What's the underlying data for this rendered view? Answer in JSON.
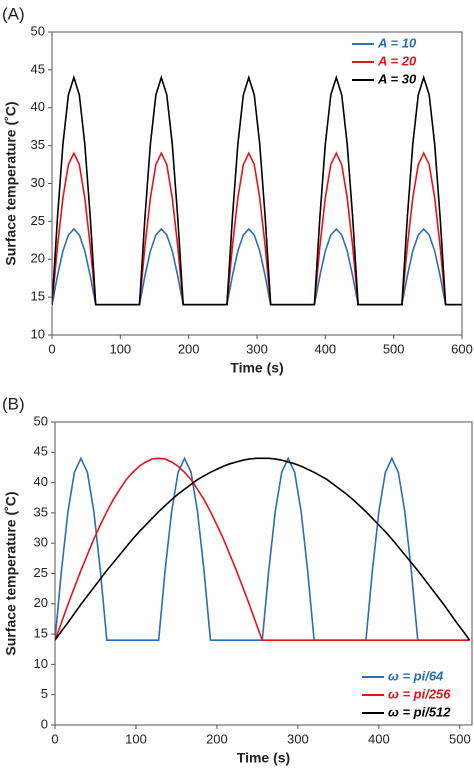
{
  "chart_data": [
    {
      "type": "line",
      "label": "(A)",
      "xlabel": "Time (s)",
      "ylabel": "Surface temperature (˚C)",
      "xlim": [
        0,
        600
      ],
      "xticks": [
        0,
        100,
        200,
        300,
        400,
        500,
        600
      ],
      "ylim": [
        10,
        50
      ],
      "yticks": [
        10,
        15,
        20,
        25,
        30,
        35,
        40,
        45,
        50
      ],
      "legend": "upper right",
      "x": [
        0,
        8,
        16,
        24,
        32,
        40,
        48,
        56,
        64,
        72,
        80,
        88,
        96,
        104,
        112,
        120,
        128,
        136,
        144,
        152,
        160,
        168,
        176,
        184,
        192,
        200,
        208,
        216,
        224,
        232,
        240,
        248,
        256,
        264,
        272,
        280,
        288,
        296,
        304,
        312,
        320,
        328,
        336,
        344,
        352,
        360,
        368,
        376,
        384,
        392,
        400,
        408,
        416,
        424,
        432,
        440,
        448,
        456,
        464,
        472,
        480,
        488,
        496,
        504,
        512,
        520,
        528,
        536,
        544,
        552,
        560,
        568,
        576,
        584,
        592,
        600
      ],
      "series": [
        {
          "name": "A = 10",
          "color": "#2a6eb5",
          "values": [
            14,
            17.8,
            21.1,
            23.2,
            24,
            23.2,
            21.1,
            17.8,
            14,
            14,
            14,
            14,
            14,
            14,
            14,
            14,
            14,
            17.8,
            21.1,
            23.2,
            24,
            23.2,
            21.1,
            17.8,
            14,
            14,
            14,
            14,
            14,
            14,
            14,
            14,
            14,
            17.8,
            21.1,
            23.2,
            24,
            23.2,
            21.1,
            17.8,
            14,
            14,
            14,
            14,
            14,
            14,
            14,
            14,
            14,
            17.8,
            21.1,
            23.2,
            24,
            23.2,
            21.1,
            17.8,
            14,
            14,
            14,
            14,
            14,
            14,
            14,
            14,
            14,
            17.8,
            21.1,
            23.2,
            24,
            23.2,
            21.1,
            17.8,
            14,
            14,
            14,
            14
          ]
        },
        {
          "name": "A = 20",
          "color": "#e8121a",
          "values": [
            14,
            21.7,
            28.1,
            32.5,
            34,
            32.5,
            28.1,
            21.7,
            14,
            14,
            14,
            14,
            14,
            14,
            14,
            14,
            14,
            21.7,
            28.1,
            32.5,
            34,
            32.5,
            28.1,
            21.7,
            14,
            14,
            14,
            14,
            14,
            14,
            14,
            14,
            14,
            21.7,
            28.1,
            32.5,
            34,
            32.5,
            28.1,
            21.7,
            14,
            14,
            14,
            14,
            14,
            14,
            14,
            14,
            14,
            21.7,
            28.1,
            32.5,
            34,
            32.5,
            28.1,
            21.7,
            14,
            14,
            14,
            14,
            14,
            14,
            14,
            14,
            14,
            21.7,
            28.1,
            32.5,
            34,
            32.5,
            28.1,
            21.7,
            14,
            14,
            14,
            14
          ]
        },
        {
          "name": "A = 30",
          "color": "#000000",
          "values": [
            14,
            25.5,
            35.2,
            41.7,
            44,
            41.7,
            35.2,
            25.5,
            14,
            14,
            14,
            14,
            14,
            14,
            14,
            14,
            14,
            25.5,
            35.2,
            41.7,
            44,
            41.7,
            35.2,
            25.5,
            14,
            14,
            14,
            14,
            14,
            14,
            14,
            14,
            14,
            25.5,
            35.2,
            41.7,
            44,
            41.7,
            35.2,
            25.5,
            14,
            14,
            14,
            14,
            14,
            14,
            14,
            14,
            14,
            25.5,
            35.2,
            41.7,
            44,
            41.7,
            35.2,
            25.5,
            14,
            14,
            14,
            14,
            14,
            14,
            14,
            14,
            14,
            25.5,
            35.2,
            41.7,
            44,
            41.7,
            35.2,
            25.5,
            14,
            14,
            14,
            14
          ]
        }
      ]
    },
    {
      "type": "line",
      "label": "(B)",
      "xlabel": "Time (s)",
      "ylabel": "Surface temperature (˚C)",
      "xlim": [
        0,
        515
      ],
      "xticks": [
        0,
        100,
        200,
        300,
        400,
        500
      ],
      "ylim": [
        0,
        50
      ],
      "yticks": [
        0,
        5,
        10,
        15,
        20,
        25,
        30,
        35,
        40,
        45,
        50
      ],
      "legend": "lower right",
      "x": [
        0,
        8,
        16,
        24,
        32,
        40,
        48,
        56,
        64,
        72,
        80,
        88,
        96,
        104,
        112,
        120,
        128,
        136,
        144,
        152,
        160,
        168,
        176,
        184,
        192,
        200,
        208,
        216,
        224,
        232,
        240,
        248,
        256,
        264,
        272,
        280,
        288,
        296,
        304,
        312,
        320,
        328,
        336,
        344,
        352,
        360,
        368,
        376,
        384,
        392,
        400,
        408,
        416,
        424,
        432,
        440,
        448,
        456,
        464,
        472,
        480,
        488,
        496,
        504,
        512
      ],
      "series": [
        {
          "name": "ω = pi/64",
          "color": "#2a6eb5",
          "values": [
            14,
            25.5,
            35.2,
            41.7,
            44,
            41.7,
            35.2,
            25.5,
            14,
            14,
            14,
            14,
            14,
            14,
            14,
            14,
            14,
            25.5,
            35.2,
            41.7,
            44,
            41.7,
            35.2,
            25.5,
            14,
            14,
            14,
            14,
            14,
            14,
            14,
            14,
            14,
            25.5,
            35.2,
            41.7,
            44,
            41.7,
            35.2,
            25.5,
            14,
            14,
            14,
            14,
            14,
            14,
            14,
            14,
            14,
            25.5,
            35.2,
            41.7,
            44,
            41.7,
            35.2,
            25.5,
            14,
            14,
            14,
            14,
            14,
            14,
            14,
            14,
            14
          ]
        },
        {
          "name": "ω = pi/256",
          "color": "#e8121a",
          "values": [
            14,
            16.9,
            19.9,
            22.7,
            25.5,
            28.1,
            30.7,
            33,
            35.2,
            37.2,
            38.9,
            40.5,
            41.7,
            42.7,
            43.4,
            43.9,
            44,
            43.9,
            43.4,
            42.7,
            41.7,
            40.5,
            38.9,
            37.2,
            35.2,
            33,
            30.7,
            28.1,
            25.5,
            22.7,
            19.9,
            16.9,
            14,
            14,
            14,
            14,
            14,
            14,
            14,
            14,
            14,
            14,
            14,
            14,
            14,
            14,
            14,
            14,
            14,
            14,
            14,
            14,
            14,
            14,
            14,
            14,
            14,
            14,
            14,
            14,
            14,
            14,
            14,
            14,
            14
          ]
        },
        {
          "name": "ω = pi/512",
          "color": "#000000",
          "values": [
            14,
            15.5,
            16.9,
            18.4,
            19.9,
            21.3,
            22.7,
            24.1,
            25.5,
            26.8,
            28.1,
            29.4,
            30.7,
            31.9,
            33,
            34.1,
            35.2,
            36.2,
            37.2,
            38.1,
            38.9,
            39.7,
            40.5,
            41.1,
            41.7,
            42.2,
            42.7,
            43.1,
            43.4,
            43.7,
            43.9,
            44,
            44,
            44,
            43.9,
            43.7,
            43.4,
            43.1,
            42.7,
            42.2,
            41.7,
            41.1,
            40.5,
            39.7,
            38.9,
            38.1,
            37.2,
            36.2,
            35.2,
            34.1,
            33,
            31.9,
            30.7,
            29.4,
            28.1,
            26.8,
            25.5,
            24.1,
            22.7,
            21.3,
            19.9,
            18.4,
            16.9,
            15.5,
            14
          ]
        }
      ]
    }
  ]
}
